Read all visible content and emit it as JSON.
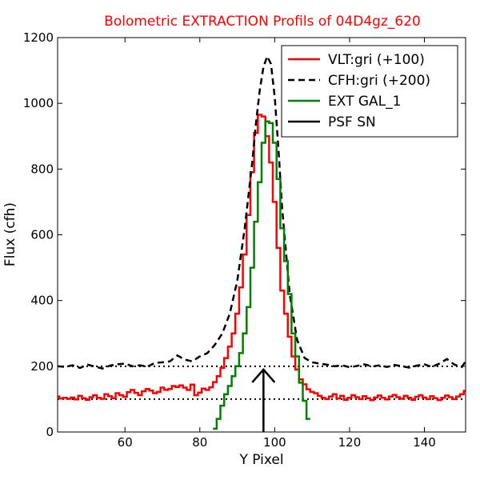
{
  "chart_data": {
    "type": "line",
    "title": "Bolometric EXTRACTION Profils of 04D4gz_620",
    "xlabel": "Y Pixel",
    "ylabel": "Flux (cfh)",
    "xlim": [
      42,
      151
    ],
    "ylim": [
      0,
      1200
    ],
    "xticks": [
      60,
      80,
      100,
      120,
      140
    ],
    "yticks": [
      0,
      200,
      400,
      600,
      800,
      1000,
      1200
    ],
    "grid": false,
    "legend_position": "top-right",
    "reference_lines": [
      {
        "y": 100,
        "style": "dotted",
        "color": "#000000"
      },
      {
        "y": 200,
        "style": "dotted",
        "color": "#000000"
      }
    ],
    "series": [
      {
        "name": "VLT:gri (+100)",
        "color": "#ff0000",
        "style": "steps-solid",
        "x": [
          42,
          43,
          44,
          45,
          46,
          47,
          48,
          49,
          50,
          51,
          52,
          53,
          54,
          55,
          56,
          57,
          58,
          59,
          60,
          61,
          62,
          63,
          64,
          65,
          66,
          67,
          68,
          69,
          70,
          71,
          72,
          73,
          74,
          75,
          76,
          77,
          78,
          79,
          80,
          81,
          82,
          83,
          84,
          85,
          86,
          87,
          88,
          89,
          90,
          91,
          92,
          93,
          94,
          95,
          96,
          97,
          98,
          99,
          100,
          101,
          102,
          103,
          104,
          105,
          106,
          107,
          108,
          109,
          110,
          111,
          112,
          113,
          114,
          115,
          116,
          117,
          118,
          119,
          120,
          121,
          122,
          123,
          124,
          125,
          126,
          127,
          128,
          129,
          130,
          131,
          132,
          133,
          134,
          135,
          136,
          137,
          138,
          139,
          140,
          141,
          142,
          143,
          144,
          145,
          146,
          147,
          148,
          149,
          150,
          151
        ],
        "values": [
          108,
          102,
          104,
          101,
          105,
          99,
          110,
          103,
          98,
          106,
          112,
          104,
          101,
          115,
          109,
          103,
          118,
          112,
          107,
          121,
          128,
          119,
          112,
          124,
          131,
          126,
          118,
          122,
          135,
          128,
          131,
          140,
          137,
          142,
          135,
          128,
          144,
          112,
          120,
          132,
          128,
          136,
          152,
          170,
          195,
          225,
          260,
          300,
          360,
          440,
          540,
          660,
          790,
          910,
          965,
          960,
          900,
          820,
          700,
          560,
          430,
          360,
          290,
          230,
          190,
          160,
          145,
          130,
          122,
          118,
          110,
          104,
          100,
          108,
          115,
          102,
          110,
          98,
          104,
          112,
          106,
          100,
          109,
          103,
          97,
          105,
          111,
          104,
          99,
          108,
          113,
          106,
          101,
          110,
          104,
          98,
          107,
          112,
          105,
          100,
          109,
          103,
          97,
          104,
          111,
          106,
          100,
          108,
          115,
          125
        ]
      },
      {
        "name": "CFH:gri (+200)",
        "color": "#000000",
        "style": "dashed",
        "x": [
          42,
          44,
          46,
          48,
          50,
          52,
          54,
          56,
          58,
          60,
          62,
          64,
          66,
          68,
          70,
          72,
          74,
          76,
          78,
          80,
          82,
          84,
          86,
          88,
          90,
          92,
          94,
          95,
          96,
          97,
          98,
          99,
          100,
          101,
          102,
          104,
          106,
          108,
          110,
          112,
          114,
          116,
          118,
          120,
          122,
          124,
          126,
          128,
          130,
          132,
          134,
          136,
          138,
          140,
          142,
          144,
          146,
          148,
          150,
          151
        ],
        "values": [
          200,
          198,
          203,
          195,
          205,
          199,
          193,
          202,
          206,
          208,
          200,
          203,
          199,
          210,
          212,
          215,
          233,
          220,
          215,
          230,
          240,
          265,
          300,
          360,
          460,
          620,
          820,
          940,
          1040,
          1110,
          1143,
          1120,
          1020,
          860,
          680,
          420,
          280,
          225,
          212,
          208,
          205,
          200,
          203,
          197,
          201,
          206,
          199,
          203,
          198,
          204,
          200,
          196,
          202,
          206,
          198,
          208,
          222,
          205,
          198,
          215
        ]
      },
      {
        "name": "EXT GAL_1",
        "color": "#008000",
        "style": "steps-solid",
        "x": [
          84,
          85,
          86,
          87,
          88,
          89,
          90,
          91,
          92,
          93,
          94,
          95,
          96,
          97,
          98,
          99,
          100,
          101,
          102,
          103,
          104,
          105,
          106,
          107,
          108,
          109
        ],
        "values": [
          10,
          40,
          80,
          115,
          140,
          170,
          200,
          240,
          300,
          380,
          500,
          640,
          760,
          880,
          945,
          940,
          880,
          770,
          620,
          520,
          420,
          300,
          230,
          150,
          95,
          40
        ]
      }
    ],
    "annotation": {
      "name": "PSF SN",
      "type": "arrow",
      "color": "#000000",
      "x": 97,
      "y_from": 0,
      "y_to": 190
    }
  }
}
